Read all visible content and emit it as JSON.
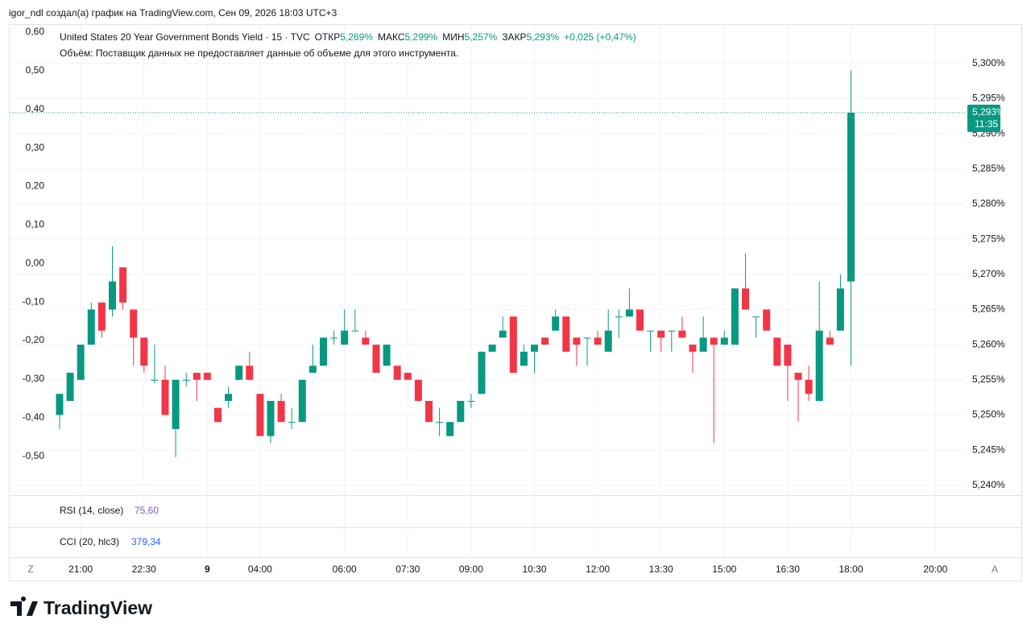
{
  "attribution": "igor_ndl создал(а) график на TradingView.com, Сен 09, 2026 18:03 UTC+3",
  "chart_data": {
    "type": "candlestick",
    "legend": {
      "symbol": "United States 20 Year Government Bonds Yield · 15 · TVC",
      "items": [
        {
          "label": "ОТКР",
          "value": "5,269%"
        },
        {
          "label": "МАКС",
          "value": "5,299%"
        },
        {
          "label": "МИН",
          "value": "5,257%"
        },
        {
          "label": "ЗАКР",
          "value": "5,293%"
        }
      ],
      "change": "+0,025 (+0,47%)"
    },
    "volume_note": "Объём: Поставщик данных не предоставляет данные об объеме для этого инструмента.",
    "categories": [
      null,
      null,
      "21:00",
      null,
      null,
      null,
      null,
      null,
      "22:30",
      null,
      null,
      null,
      null,
      null,
      "9",
      null,
      null,
      null,
      null,
      "04:00",
      null,
      null,
      null,
      null,
      null,
      null,
      null,
      "06:00",
      null,
      null,
      null,
      null,
      null,
      "07:30",
      null,
      null,
      null,
      null,
      null,
      "09:00",
      null,
      null,
      null,
      null,
      null,
      "10:30",
      null,
      null,
      null,
      null,
      null,
      "12:00",
      null,
      null,
      null,
      null,
      null,
      "13:30",
      null,
      null,
      null,
      null,
      null,
      "15:00",
      null,
      null,
      null,
      null,
      null,
      "16:30",
      null,
      null,
      null,
      null,
      null,
      "18:00",
      null,
      null,
      null,
      null,
      null,
      null,
      null,
      "20:00"
    ],
    "open": [
      5.25,
      5.252,
      5.255,
      5.26,
      5.266,
      5.265,
      5.271,
      5.265,
      5.261,
      5.255,
      5.255,
      5.248,
      5.255,
      5.256,
      5.256,
      5.251,
      5.252,
      5.255,
      5.257,
      5.253,
      5.247,
      5.252,
      5.249,
      5.249,
      5.256,
      5.257,
      5.261,
      5.26,
      5.262,
      5.261,
      5.26,
      5.257,
      5.257,
      5.256,
      5.255,
      5.252,
      5.249,
      5.247,
      5.249,
      5.252,
      5.253,
      5.259,
      5.261,
      5.264,
      5.257,
      5.259,
      5.261,
      5.262,
      5.264,
      5.261,
      5.261,
      5.261,
      5.259,
      5.264,
      5.264,
      5.265,
      5.262,
      5.262,
      5.262,
      5.262,
      5.26,
      5.259,
      5.261,
      5.26,
      5.26,
      5.268,
      5.264,
      5.265,
      5.261,
      5.26,
      5.256,
      5.255,
      5.252,
      5.261,
      5.262,
      5.269,
      null,
      null,
      null,
      null,
      null,
      null,
      null,
      null
    ],
    "high": [
      5.253,
      5.256,
      5.26,
      5.266,
      5.266,
      5.274,
      5.271,
      5.265,
      5.261,
      5.26,
      5.257,
      5.255,
      5.256,
      5.256,
      5.256,
      5.251,
      5.254,
      5.257,
      5.259,
      5.253,
      5.252,
      5.253,
      5.251,
      5.255,
      5.26,
      5.261,
      5.262,
      5.265,
      5.265,
      5.262,
      5.26,
      5.26,
      5.257,
      5.256,
      5.255,
      5.252,
      5.251,
      5.249,
      5.252,
      5.253,
      5.259,
      5.26,
      5.264,
      5.264,
      5.26,
      5.26,
      5.261,
      5.265,
      5.264,
      5.261,
      5.261,
      5.262,
      5.265,
      5.265,
      5.268,
      5.265,
      5.262,
      5.262,
      5.262,
      5.264,
      5.26,
      5.264,
      5.261,
      5.262,
      5.268,
      5.273,
      5.264,
      5.265,
      5.261,
      5.26,
      5.256,
      5.257,
      5.269,
      5.262,
      5.27,
      5.299,
      null,
      null,
      null,
      null,
      null,
      null,
      null,
      null
    ],
    "low": [
      5.248,
      5.252,
      5.255,
      5.26,
      5.261,
      5.264,
      5.265,
      5.257,
      5.256,
      5.2545,
      5.25,
      5.244,
      5.254,
      5.252,
      5.255,
      5.249,
      5.251,
      5.255,
      5.255,
      5.247,
      5.246,
      5.249,
      5.248,
      5.249,
      5.256,
      5.257,
      5.26,
      5.26,
      5.262,
      5.26,
      5.256,
      5.257,
      5.255,
      5.255,
      5.252,
      5.249,
      5.247,
      5.247,
      5.249,
      5.251,
      5.253,
      5.259,
      5.261,
      5.256,
      5.257,
      5.256,
      5.26,
      5.262,
      5.259,
      5.257,
      5.257,
      5.26,
      5.259,
      5.261,
      5.264,
      5.262,
      5.259,
      5.259,
      5.259,
      5.261,
      5.256,
      5.259,
      5.246,
      5.26,
      5.26,
      5.265,
      5.261,
      5.262,
      5.257,
      5.252,
      5.249,
      5.252,
      5.252,
      5.26,
      5.262,
      5.257,
      null,
      null,
      null,
      null,
      null,
      null,
      null,
      null
    ],
    "close": [
      5.253,
      5.256,
      5.26,
      5.265,
      5.262,
      5.269,
      5.266,
      5.261,
      5.257,
      5.255,
      5.25,
      5.255,
      5.255,
      5.255,
      5.255,
      5.249,
      5.253,
      5.257,
      5.255,
      5.247,
      5.252,
      5.249,
      5.249,
      5.255,
      5.257,
      5.261,
      5.261,
      5.262,
      5.262,
      5.26,
      5.256,
      5.26,
      5.255,
      5.255,
      5.252,
      5.249,
      5.249,
      5.249,
      5.252,
      5.252,
      5.259,
      5.26,
      5.262,
      5.256,
      5.259,
      5.26,
      5.26,
      5.264,
      5.259,
      5.26,
      5.261,
      5.26,
      5.262,
      5.264,
      5.265,
      5.262,
      5.262,
      5.261,
      5.262,
      5.261,
      5.259,
      5.261,
      5.26,
      5.261,
      5.268,
      5.265,
      5.264,
      5.262,
      5.257,
      5.257,
      5.255,
      5.253,
      5.262,
      5.26,
      5.268,
      5.293,
      null,
      null,
      null,
      null,
      null,
      null,
      null,
      null
    ],
    "up_color": "#089981",
    "down_color": "#f23645",
    "ylim": [
      5.2386,
      5.3056
    ],
    "yticks": [
      {
        "value": 5.24,
        "label": "5,240%"
      },
      {
        "value": 5.245,
        "label": "5,245%"
      },
      {
        "value": 5.25,
        "label": "5,250%"
      },
      {
        "value": 5.255,
        "label": "5,255%"
      },
      {
        "value": 5.26,
        "label": "5,260%"
      },
      {
        "value": 5.265,
        "label": "5,265%"
      },
      {
        "value": 5.27,
        "label": "5,270%"
      },
      {
        "value": 5.275,
        "label": "5,275%"
      },
      {
        "value": 5.28,
        "label": "5,280%"
      },
      {
        "value": 5.285,
        "label": "5,285%"
      },
      {
        "value": 5.29,
        "label": "5,290%"
      },
      {
        "value": 5.295,
        "label": "5,295%"
      },
      {
        "value": 5.3,
        "label": "5,300%"
      }
    ],
    "y2lim": [
      -0.601,
      0.621
    ],
    "y2ticks": [
      {
        "value": 0.6,
        "label": "0,60"
      },
      {
        "value": 0.5,
        "label": "0,50"
      },
      {
        "value": 0.4,
        "label": "0,40"
      },
      {
        "value": 0.3,
        "label": "0,30"
      },
      {
        "value": 0.2,
        "label": "0,20"
      },
      {
        "value": 0.1,
        "label": "0,10"
      },
      {
        "value": 0,
        "label": "0,00"
      },
      {
        "value": -0.1,
        "label": "-0,10"
      },
      {
        "value": -0.2,
        "label": "-0,20"
      },
      {
        "value": -0.3,
        "label": "-0,30"
      },
      {
        "value": -0.4,
        "label": "-0,40"
      },
      {
        "value": -0.5,
        "label": "-0,50"
      }
    ],
    "grid": true,
    "last_price": {
      "value": 5.293,
      "label": "5,293%",
      "countdown": "11:35",
      "color": "#089981"
    },
    "indicators": [
      {
        "name": "RSI (14, close)",
        "value": "75,60",
        "color": "#7e57c2"
      },
      {
        "name": "CCI (20, hlc3)",
        "value": "379,34",
        "color": "#2962ff"
      }
    ],
    "axis_buttons": [
      "Z",
      "A"
    ]
  },
  "footer": {
    "logo": "TradingView"
  }
}
